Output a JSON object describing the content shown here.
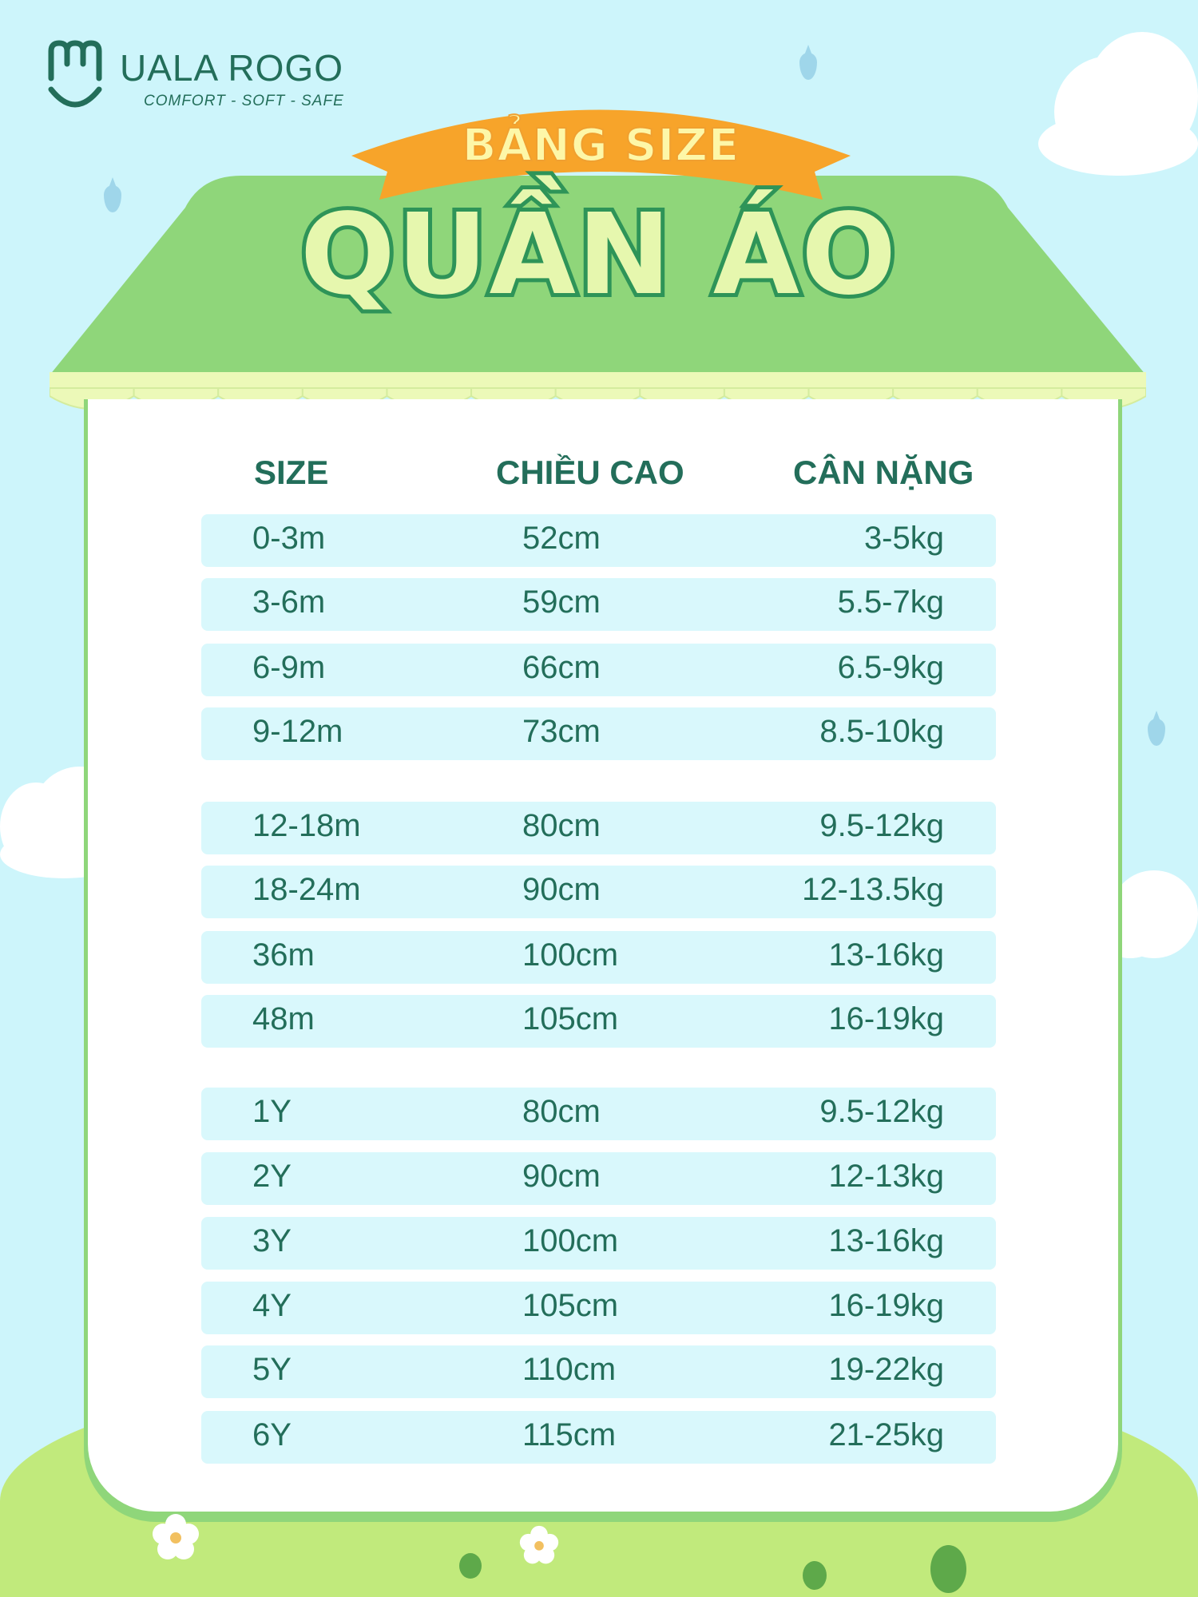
{
  "brand": {
    "name": "UALA ROGO",
    "tagline": "COMFORT - SOFT - SAFE"
  },
  "banner": {
    "label": "BẢNG SIZE",
    "title": "QUẦN ÁO"
  },
  "table": {
    "headers": [
      "SIZE",
      "CHIỀU CAO",
      "CÂN NẶNG"
    ],
    "rows": [
      [
        "0-3m",
        "52cm",
        "3-5kg"
      ],
      [
        "3-6m",
        "59cm",
        "5.5-7kg"
      ],
      [
        "6-9m",
        "66cm",
        "6.5-9kg"
      ],
      [
        "9-12m",
        "73cm",
        "8.5-10kg"
      ],
      [
        "12-18m",
        "80cm",
        "9.5-12kg"
      ],
      [
        "18-24m",
        "90cm",
        "12-13.5kg"
      ],
      [
        "36m",
        "100cm",
        "13-16kg"
      ],
      [
        "48m",
        "105cm",
        "16-19kg"
      ],
      [
        "1Y",
        "80cm",
        "9.5-12kg"
      ],
      [
        "2Y",
        "90cm",
        "12-13kg"
      ],
      [
        "3Y",
        "100cm",
        "13-16kg"
      ],
      [
        "4Y",
        "105cm",
        "16-19kg"
      ],
      [
        "5Y",
        "110cm",
        "19-22kg"
      ],
      [
        "6Y",
        "115cm",
        "21-25kg"
      ]
    ]
  },
  "colors": {
    "sky": "#cdf5fb",
    "roof": "#8fd67a",
    "text": "#236e5a",
    "banner": "#f7a42a",
    "row": "#d9f8fc"
  }
}
